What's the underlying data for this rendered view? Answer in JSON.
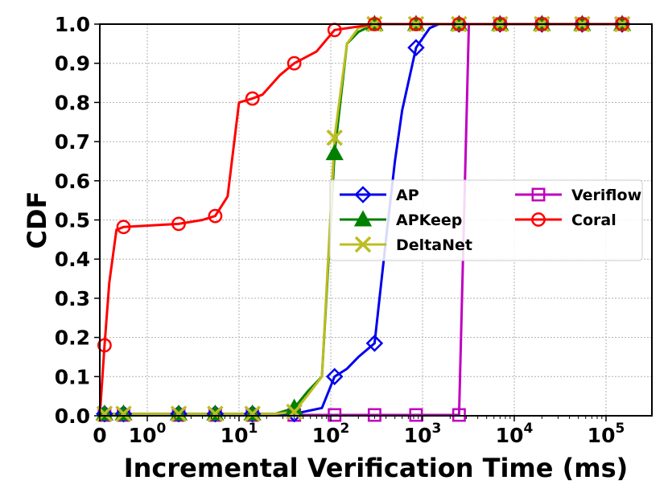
{
  "chart_data": {
    "type": "line",
    "title": "",
    "xlabel": "Incremental Verification Time (ms)",
    "ylabel": "CDF",
    "xscale": "symlog",
    "xlim": [
      0,
      200000
    ],
    "ylim": [
      0.0,
      1.0
    ],
    "x_ticks": [
      {
        "value": 0,
        "base": "0",
        "exp": ""
      },
      {
        "value": 1,
        "base": "10",
        "exp": "0"
      },
      {
        "value": 10,
        "base": "10",
        "exp": "1"
      },
      {
        "value": 100,
        "base": "10",
        "exp": "2"
      },
      {
        "value": 1000,
        "base": "10",
        "exp": "3"
      },
      {
        "value": 10000,
        "base": "10",
        "exp": "4"
      },
      {
        "value": 100000,
        "base": "10",
        "exp": "5"
      }
    ],
    "y_ticks": [
      "0.0",
      "0.1",
      "0.2",
      "0.3",
      "0.4",
      "0.5",
      "0.6",
      "0.7",
      "0.8",
      "0.9",
      "1.0"
    ],
    "grid": true,
    "legend": {
      "placement": "center-right",
      "columns": 2
    },
    "series": [
      {
        "name": "AP",
        "color": "#0000ee",
        "marker": "diamond",
        "x": [
          0,
          0.1,
          0.5,
          2.2,
          5.5,
          14,
          40,
          80,
          110,
          150,
          200,
          300,
          400,
          500,
          600,
          850,
          1200,
          1500,
          2500,
          7000,
          20000,
          55000,
          150000
        ],
        "y": [
          0.005,
          0.005,
          0.005,
          0.005,
          0.005,
          0.005,
          0.005,
          0.02,
          0.1,
          0.12,
          0.15,
          0.185,
          0.45,
          0.65,
          0.78,
          0.94,
          0.99,
          1.0,
          1.0,
          1.0,
          1.0,
          1.0,
          1.0
        ],
        "marker_indices": [
          1,
          2,
          3,
          4,
          5,
          6,
          8,
          11,
          15,
          18,
          19,
          20,
          21,
          22
        ]
      },
      {
        "name": "APKeep",
        "color": "#008000",
        "marker": "triangle",
        "x": [
          0,
          0.1,
          0.5,
          2.2,
          5.5,
          14,
          25,
          40,
          55,
          80,
          110,
          150,
          200,
          300,
          850,
          2500,
          7000,
          20000,
          55000,
          150000
        ],
        "y": [
          0.005,
          0.005,
          0.005,
          0.005,
          0.005,
          0.005,
          0.005,
          0.02,
          0.06,
          0.1,
          0.67,
          0.95,
          0.98,
          1.0,
          1.0,
          1.0,
          1.0,
          1.0,
          1.0,
          1.0
        ],
        "marker_indices": [
          1,
          2,
          3,
          4,
          5,
          7,
          10,
          13,
          14,
          15,
          16,
          17,
          18,
          19
        ]
      },
      {
        "name": "DeltaNet",
        "color": "#bcbd22",
        "marker": "x",
        "x": [
          0,
          0.1,
          0.5,
          2.2,
          5.5,
          14,
          25,
          40,
          55,
          80,
          110,
          150,
          200,
          300,
          850,
          2500,
          7000,
          20000,
          55000,
          150000
        ],
        "y": [
          0.005,
          0.005,
          0.005,
          0.005,
          0.005,
          0.005,
          0.005,
          0.01,
          0.05,
          0.1,
          0.71,
          0.95,
          0.99,
          1.0,
          1.0,
          1.0,
          1.0,
          1.0,
          1.0,
          1.0
        ],
        "marker_indices": [
          1,
          2,
          3,
          4,
          5,
          7,
          10,
          13,
          14,
          15,
          16,
          17,
          18,
          19
        ]
      },
      {
        "name": "Veriflow",
        "color": "#c000c0",
        "marker": "square",
        "x": [
          0,
          0.1,
          0.5,
          2.2,
          5.5,
          14,
          40,
          110,
          300,
          850,
          2500,
          3200,
          7000,
          20000,
          55000,
          150000
        ],
        "y": [
          0.002,
          0.002,
          0.002,
          0.002,
          0.002,
          0.002,
          0.002,
          0.002,
          0.002,
          0.002,
          0.002,
          1.0,
          1.0,
          1.0,
          1.0,
          1.0
        ],
        "marker_indices": [
          1,
          2,
          3,
          4,
          5,
          6,
          7,
          8,
          9,
          10,
          12,
          13,
          14,
          15
        ]
      },
      {
        "name": "Coral",
        "color": "#ff0000",
        "marker": "circle",
        "x": [
          0,
          0.1,
          0.2,
          0.35,
          0.5,
          2.2,
          4,
          5.5,
          7.5,
          10,
          14,
          18,
          28,
          40,
          70,
          110,
          300,
          850,
          2500,
          7000,
          20000,
          55000,
          150000
        ],
        "y": [
          0.0,
          0.18,
          0.34,
          0.475,
          0.482,
          0.49,
          0.5,
          0.51,
          0.56,
          0.8,
          0.81,
          0.82,
          0.87,
          0.9,
          0.93,
          0.985,
          1.0,
          1.0,
          1.0,
          1.0,
          1.0,
          1.0,
          1.0
        ],
        "marker_indices": [
          1,
          4,
          5,
          7,
          10,
          13,
          15,
          16,
          17,
          18,
          19,
          20,
          21,
          22
        ]
      }
    ]
  }
}
